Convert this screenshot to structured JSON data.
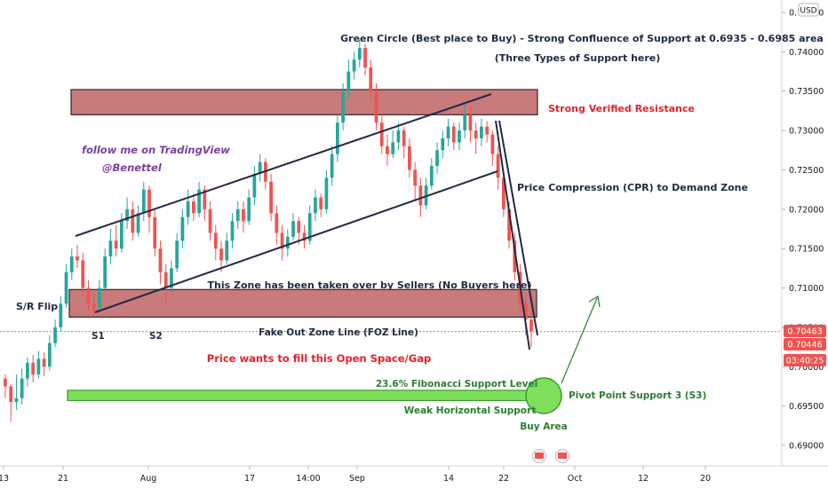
{
  "chart_data": {
    "type": "candlestick",
    "currency": "USD",
    "y_ticks": [
      "0.69000",
      "0.69500",
      "0.70000",
      "0.70500",
      "0.71000",
      "0.71500",
      "0.72000",
      "0.72500",
      "0.73000",
      "0.73500",
      "0.74000",
      "0.74500"
    ],
    "ylim": [
      0.6885,
      0.7465
    ],
    "x_ticks": [
      "13",
      "21",
      "Aug",
      "17",
      "14:00",
      "Sep",
      "14",
      "22",
      "Oct",
      "12",
      "20"
    ],
    "price_labels": {
      "price_a": "0.70463",
      "price_b": "0.70446",
      "countdown": "03:40:25"
    },
    "last_price": 0.70446,
    "candles": [
      [
        0.6985,
        0.6975,
        0.699,
        0.696
      ],
      [
        0.6975,
        0.6955,
        0.6978,
        0.693
      ],
      [
        0.6955,
        0.696,
        0.699,
        0.6945
      ],
      [
        0.696,
        0.6985,
        0.6998,
        0.6952
      ],
      [
        0.6985,
        0.7005,
        0.7012,
        0.6975
      ],
      [
        0.7005,
        0.699,
        0.7015,
        0.698
      ],
      [
        0.699,
        0.701,
        0.702,
        0.6985
      ],
      [
        0.701,
        0.7,
        0.7018,
        0.6988
      ],
      [
        0.7,
        0.703,
        0.704,
        0.6995
      ],
      [
        0.703,
        0.705,
        0.706,
        0.7025
      ],
      [
        0.705,
        0.708,
        0.709,
        0.7045
      ],
      [
        0.708,
        0.712,
        0.713,
        0.7075
      ],
      [
        0.712,
        0.714,
        0.715,
        0.711
      ],
      [
        0.714,
        0.7135,
        0.7155,
        0.7125
      ],
      [
        0.7135,
        0.71,
        0.7145,
        0.709
      ],
      [
        0.71,
        0.708,
        0.711,
        0.707
      ],
      [
        0.708,
        0.7075,
        0.7095,
        0.7065
      ],
      [
        0.7075,
        0.71,
        0.711,
        0.707
      ],
      [
        0.71,
        0.714,
        0.715,
        0.7095
      ],
      [
        0.714,
        0.716,
        0.7175,
        0.713
      ],
      [
        0.716,
        0.715,
        0.718,
        0.714
      ],
      [
        0.715,
        0.7185,
        0.7195,
        0.7145
      ],
      [
        0.7185,
        0.72,
        0.7215,
        0.7175
      ],
      [
        0.72,
        0.717,
        0.721,
        0.716
      ],
      [
        0.717,
        0.7195,
        0.7205,
        0.7165
      ],
      [
        0.7195,
        0.7225,
        0.7235,
        0.7185
      ],
      [
        0.7225,
        0.719,
        0.723,
        0.717
      ],
      [
        0.719,
        0.715,
        0.72,
        0.714
      ],
      [
        0.715,
        0.712,
        0.716,
        0.7105
      ],
      [
        0.712,
        0.71,
        0.713,
        0.708
      ],
      [
        0.71,
        0.7125,
        0.7135,
        0.7095
      ],
      [
        0.7125,
        0.716,
        0.717,
        0.712
      ],
      [
        0.716,
        0.719,
        0.72,
        0.715
      ],
      [
        0.719,
        0.721,
        0.7225,
        0.718
      ],
      [
        0.721,
        0.7195,
        0.722,
        0.7185
      ],
      [
        0.7195,
        0.7225,
        0.7235,
        0.719
      ],
      [
        0.7225,
        0.72,
        0.723,
        0.7185
      ],
      [
        0.72,
        0.717,
        0.721,
        0.716
      ],
      [
        0.717,
        0.715,
        0.718,
        0.7135
      ],
      [
        0.715,
        0.7135,
        0.716,
        0.712
      ],
      [
        0.7135,
        0.716,
        0.717,
        0.713
      ],
      [
        0.716,
        0.7185,
        0.7195,
        0.715
      ],
      [
        0.7185,
        0.72,
        0.721,
        0.7175
      ],
      [
        0.72,
        0.7185,
        0.721,
        0.717
      ],
      [
        0.7185,
        0.7215,
        0.7225,
        0.718
      ],
      [
        0.7215,
        0.7245,
        0.7255,
        0.7205
      ],
      [
        0.7245,
        0.726,
        0.727,
        0.7235
      ],
      [
        0.726,
        0.7235,
        0.7265,
        0.7225
      ],
      [
        0.7235,
        0.7195,
        0.7245,
        0.7185
      ],
      [
        0.7195,
        0.717,
        0.7205,
        0.7155
      ],
      [
        0.717,
        0.715,
        0.718,
        0.7135
      ],
      [
        0.715,
        0.7165,
        0.7175,
        0.714
      ],
      [
        0.7165,
        0.7185,
        0.7195,
        0.716
      ],
      [
        0.7185,
        0.717,
        0.719,
        0.7155
      ],
      [
        0.717,
        0.716,
        0.718,
        0.715
      ],
      [
        0.716,
        0.7195,
        0.7205,
        0.7155
      ],
      [
        0.7195,
        0.7215,
        0.7225,
        0.7185
      ],
      [
        0.7215,
        0.72,
        0.722,
        0.719
      ],
      [
        0.72,
        0.724,
        0.725,
        0.7195
      ],
      [
        0.724,
        0.727,
        0.728,
        0.723
      ],
      [
        0.727,
        0.731,
        0.732,
        0.726
      ],
      [
        0.731,
        0.735,
        0.736,
        0.73
      ],
      [
        0.735,
        0.7375,
        0.739,
        0.734
      ],
      [
        0.7375,
        0.739,
        0.74,
        0.7365
      ],
      [
        0.739,
        0.7405,
        0.7415,
        0.738
      ],
      [
        0.7405,
        0.738,
        0.741,
        0.737
      ],
      [
        0.738,
        0.735,
        0.739,
        0.734
      ],
      [
        0.735,
        0.731,
        0.736,
        0.73
      ],
      [
        0.731,
        0.728,
        0.732,
        0.727
      ],
      [
        0.728,
        0.727,
        0.7295,
        0.7255
      ],
      [
        0.727,
        0.7285,
        0.73,
        0.7265
      ],
      [
        0.7285,
        0.73,
        0.731,
        0.7275
      ],
      [
        0.73,
        0.728,
        0.7305,
        0.7265
      ],
      [
        0.728,
        0.725,
        0.729,
        0.724
      ],
      [
        0.725,
        0.723,
        0.726,
        0.721
      ],
      [
        0.723,
        0.7205,
        0.724,
        0.719
      ],
      [
        0.7205,
        0.723,
        0.724,
        0.72
      ],
      [
        0.723,
        0.7255,
        0.7265,
        0.7225
      ],
      [
        0.7255,
        0.7275,
        0.7285,
        0.7245
      ],
      [
        0.7275,
        0.729,
        0.73,
        0.7265
      ],
      [
        0.729,
        0.7305,
        0.7315,
        0.728
      ],
      [
        0.7305,
        0.7285,
        0.731,
        0.7275
      ],
      [
        0.7285,
        0.73,
        0.731,
        0.7275
      ],
      [
        0.73,
        0.732,
        0.7335,
        0.729
      ],
      [
        0.732,
        0.73,
        0.733,
        0.7285
      ],
      [
        0.73,
        0.729,
        0.731,
        0.727
      ],
      [
        0.729,
        0.7305,
        0.7315,
        0.728
      ],
      [
        0.7305,
        0.7295,
        0.7312,
        0.7285
      ],
      [
        0.7295,
        0.727,
        0.73,
        0.7255
      ],
      [
        0.727,
        0.724,
        0.728,
        0.7225
      ],
      [
        0.724,
        0.72,
        0.725,
        0.719
      ],
      [
        0.72,
        0.716,
        0.721,
        0.715
      ],
      [
        0.716,
        0.712,
        0.717,
        0.711
      ],
      [
        0.712,
        0.708,
        0.713,
        0.707
      ],
      [
        0.708,
        0.706,
        0.709,
        0.704
      ],
      [
        0.706,
        0.7045,
        0.707,
        0.7025
      ]
    ],
    "zones": [
      {
        "type": "resistance",
        "y_top": 0.7352,
        "y_bottom": 0.732
      },
      {
        "type": "supply",
        "y_top": 0.7098,
        "y_bottom": 0.7063
      },
      {
        "type": "support",
        "y_top": 0.697,
        "y_bottom": 0.6957
      }
    ],
    "annotations": {
      "green_circle": "Green Circle (Best place to Buy) - Strong Confluence of Support at 0.6935 - 0.6985 area",
      "three_types": "(Three Types of Support here)",
      "resistance": "Strong Verified Resistance",
      "follow": "follow me on TradingView",
      "handle": "@Benettel",
      "cpr": "Price Compression (CPR) to Demand Zone",
      "sr_flip": "S/R Flip",
      "zone_taken": "This Zone has been taken over by Sellers (No Buyers here)",
      "s1": "S1",
      "s2": "S2",
      "foz": "Fake Out Zone Line (FOZ Line)",
      "gap": "Price wants to fill this Open Space/Gap",
      "fib": "23.6% Fibonacci Support Level",
      "weak": "Weak Horizontal Support",
      "pivot": "Pivot Point Support 3 (S3)",
      "buy": "Buy Area"
    }
  },
  "colors": {
    "up": "#26a69a",
    "down": "#ef5350",
    "resistance_fill": "#c97a7a",
    "support_fill": "#7ee05a",
    "circle_fill": "#7ee05a",
    "annotation_red": "#e8202a",
    "annotation_green": "#2e7d32",
    "annotation_purple": "#7b3fa0",
    "line_dark": "#1f2a44",
    "price_tag": "#ef5350"
  }
}
